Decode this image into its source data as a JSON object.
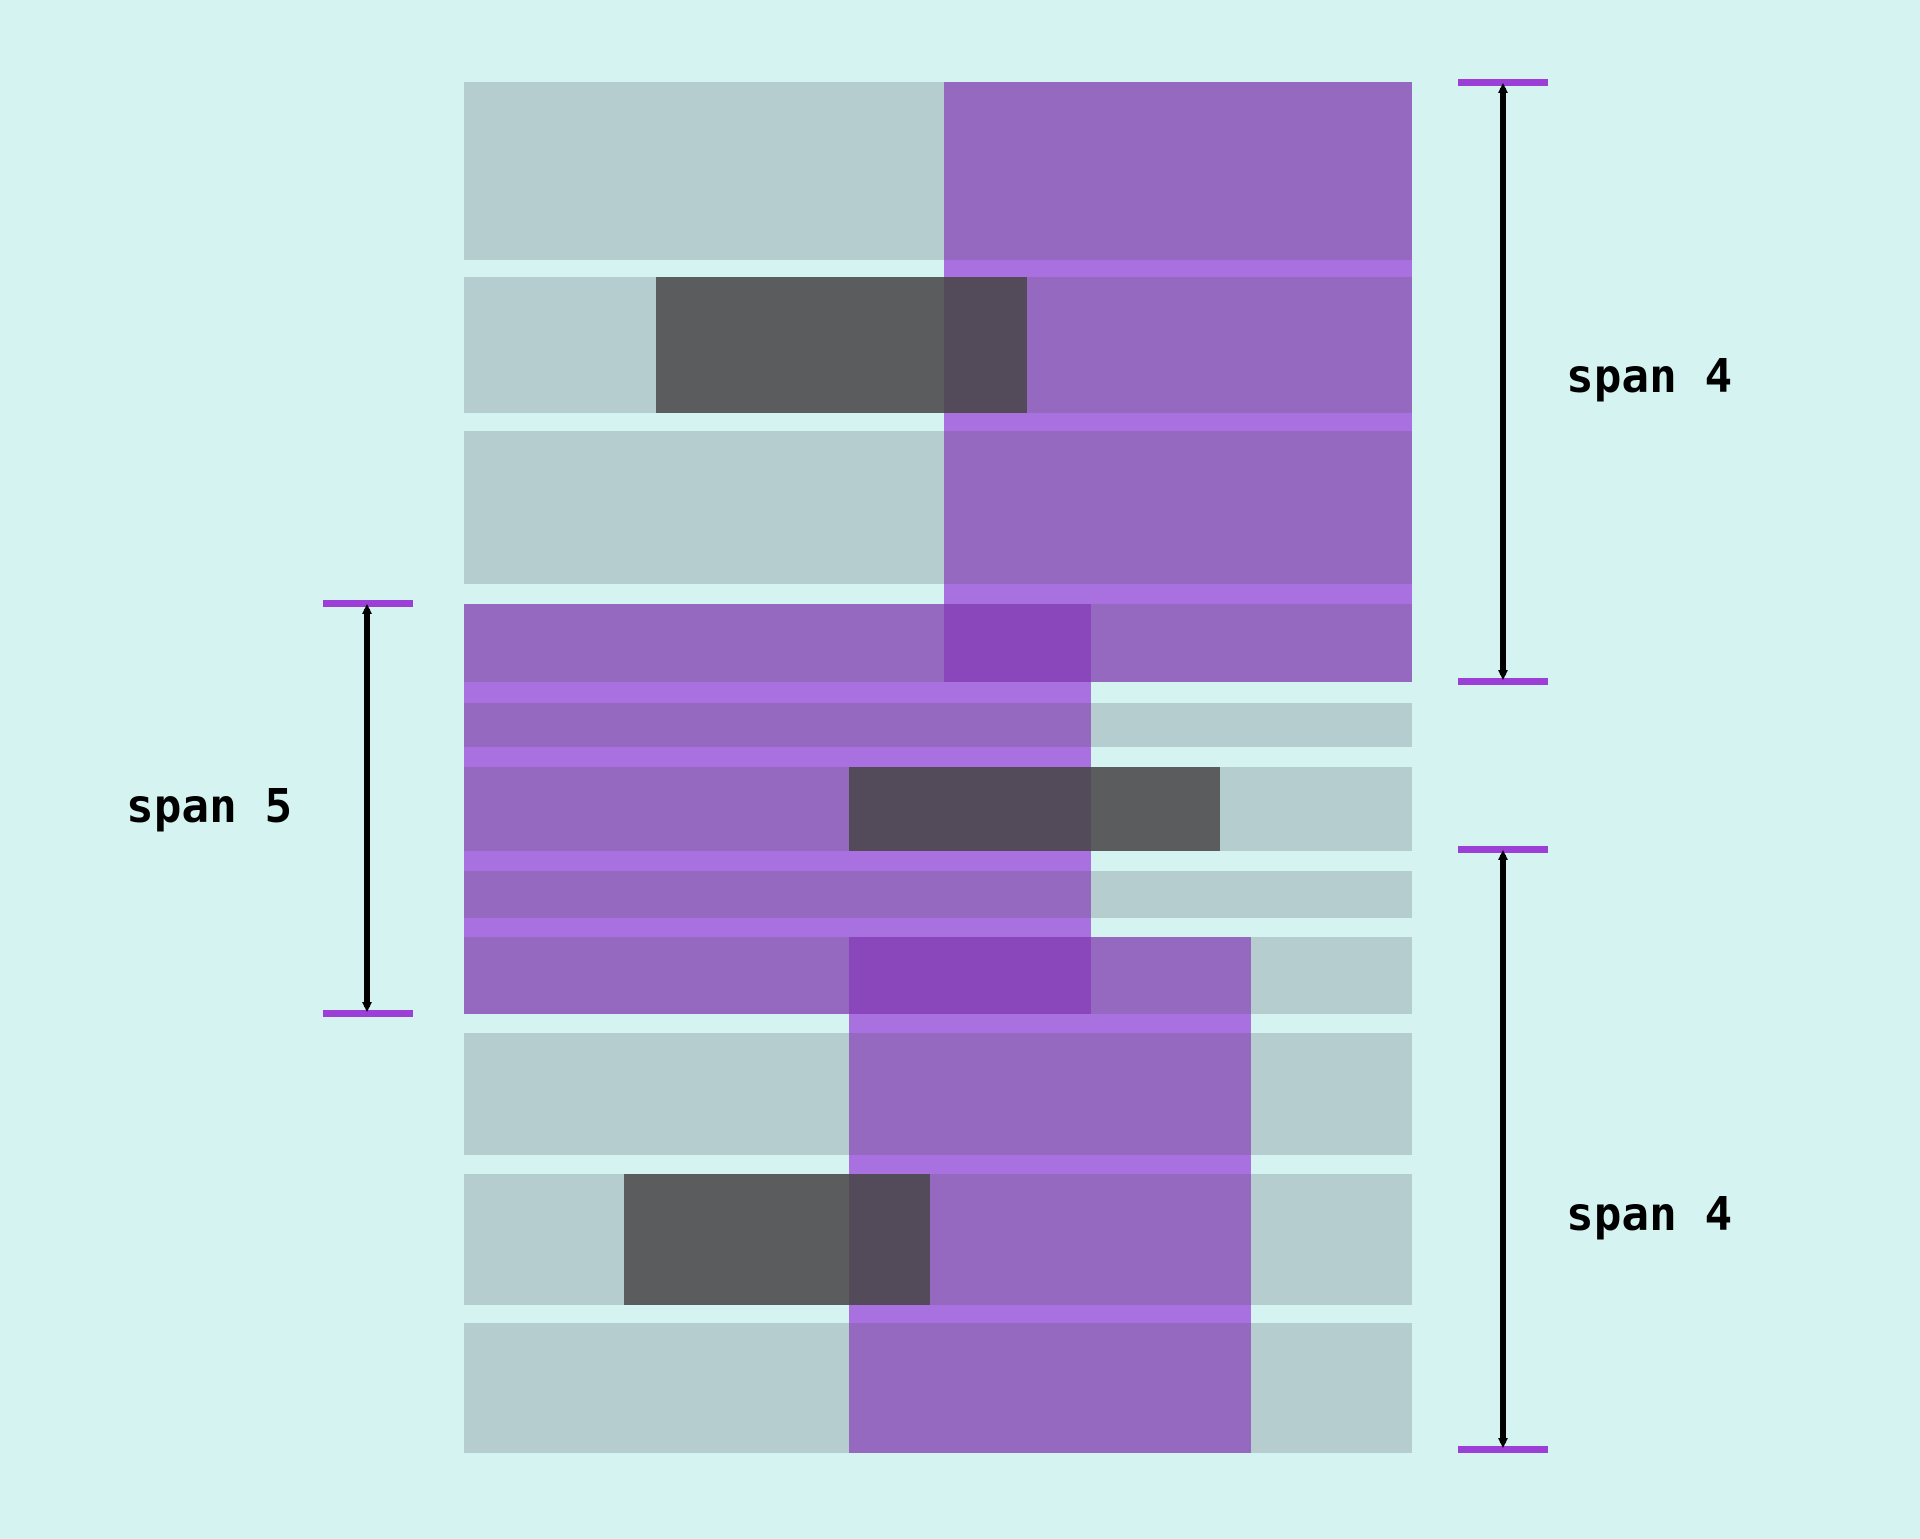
{
  "colors": {
    "background": "#d4f3f1",
    "row_fill": "#b5cdce",
    "span_fill": "#9569c0",
    "span_band": "#a971e0",
    "span_overlap": "#8a47bb",
    "item_dark": "#5a5c5d",
    "item_dark_on_span": "#544b5a",
    "marker": "#9b3fd6",
    "arrow": "#000000"
  },
  "labels": {
    "span_top_right": "span 4",
    "span_left": "span 5",
    "span_bottom_right": "span 4"
  }
}
